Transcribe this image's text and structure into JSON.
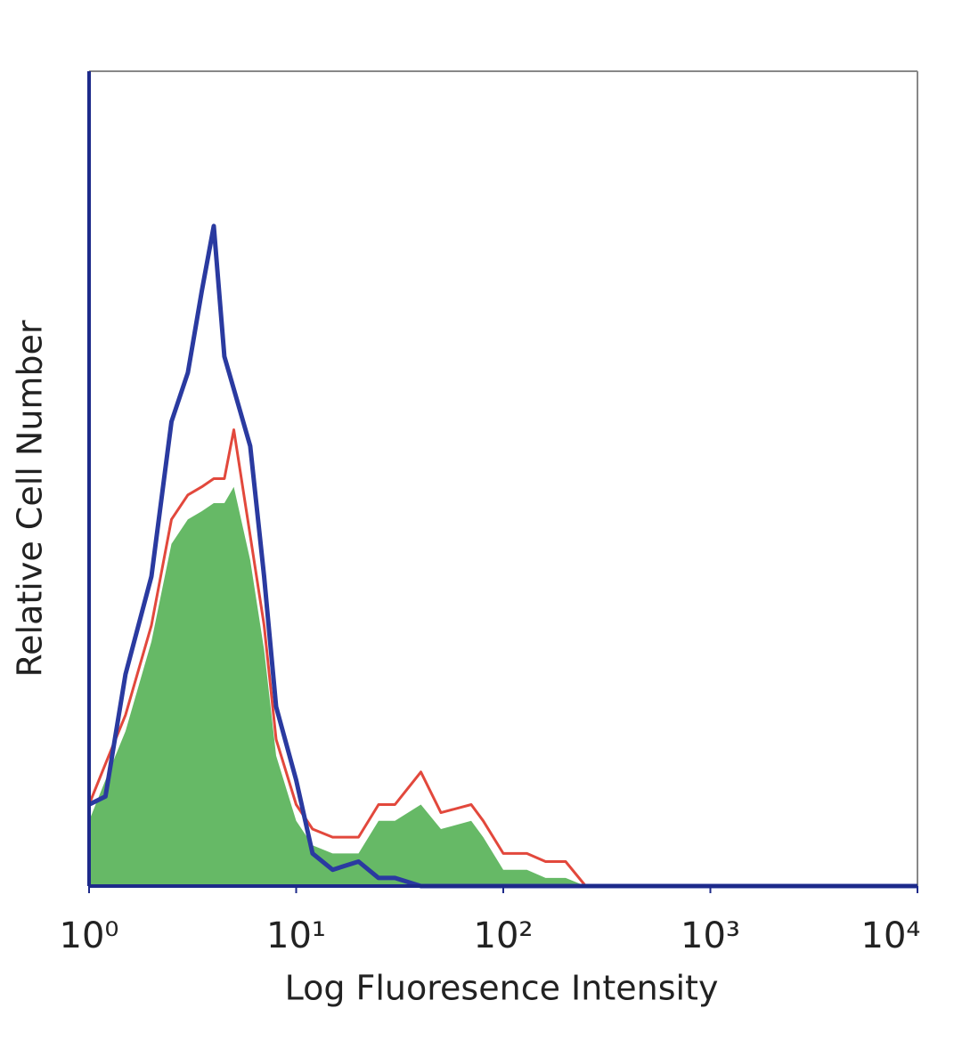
{
  "chart_data": {
    "type": "histogram-overlay",
    "x_label": "Log Fluoresence Intensity",
    "y_label": "Relative Cell Number",
    "x_scale": "log",
    "xlim": [
      1,
      10000
    ],
    "ylim": [
      0,
      100
    ],
    "xticks": [
      {
        "value": 1,
        "label": "10⁰"
      },
      {
        "value": 10,
        "label": "10¹"
      },
      {
        "value": 100,
        "label": "10²"
      },
      {
        "value": 1000,
        "label": "10³"
      },
      {
        "value": 10000,
        "label": "10⁴"
      }
    ],
    "x": [
      1,
      1.2,
      1.5,
      2,
      2.5,
      3,
      3.5,
      4,
      4.5,
      5,
      6,
      7,
      8,
      10,
      12,
      15,
      20,
      25,
      30,
      40,
      50,
      70,
      80,
      100,
      130,
      160,
      200,
      250,
      10000
    ],
    "series": [
      {
        "style": "filled",
        "color": "#66b966",
        "values": [
          8,
          13,
          19,
          30,
          42,
          45,
          46,
          47,
          47,
          49,
          40,
          29,
          16,
          8,
          5,
          4,
          4,
          8,
          8,
          10,
          7,
          8,
          6,
          2,
          2,
          1,
          1,
          0,
          0
        ]
      },
      {
        "style": "line",
        "color": "#e2483c",
        "values": [
          10,
          15,
          21,
          32,
          45,
          48,
          49,
          50,
          50,
          56,
          43,
          32,
          18,
          10,
          7,
          6,
          6,
          10,
          10,
          14,
          9,
          10,
          8,
          4,
          4,
          3,
          3,
          0,
          0
        ]
      },
      {
        "style": "line",
        "color": "#2a3aa0",
        "values": [
          10,
          11,
          26,
          38,
          57,
          63,
          73,
          81,
          65,
          61,
          54,
          38,
          22,
          13,
          4,
          2,
          3,
          1,
          1,
          0,
          0,
          0,
          0,
          0,
          0,
          0,
          0,
          0,
          0
        ]
      }
    ]
  }
}
